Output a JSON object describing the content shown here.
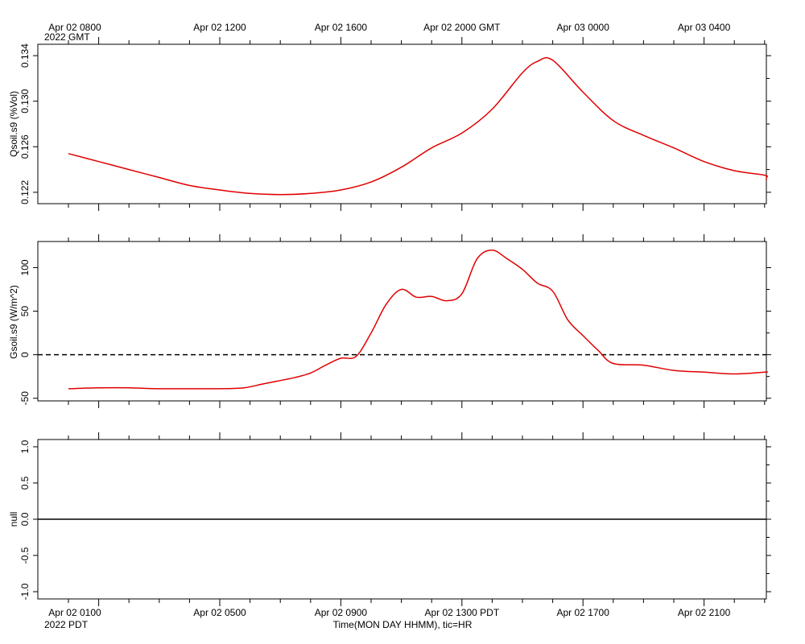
{
  "top_axis": {
    "year_label": "2022 GMT",
    "ticks": [
      "Apr 02 0800",
      "Apr 02 1200",
      "Apr 02 1600",
      "Apr 02 2000 GMT",
      "Apr 03 0000",
      "Apr 03 0400"
    ]
  },
  "bottom_axis": {
    "year_label": "2022 PDT",
    "ticks": [
      "Apr 02 0100",
      "Apr 02 0500",
      "Apr 02 0900",
      "Apr 02 1300 PDT",
      "Apr 02 1700",
      "Apr 02 2100"
    ],
    "title": "Time(MON DAY HHMM), tic=HR"
  },
  "colors": {
    "series": "#e00000",
    "axis": "#000000"
  },
  "chart_data": [
    {
      "type": "line",
      "ylabel": "Qsoil.s9 (%Vol)",
      "ylim": [
        0.121,
        0.135
      ],
      "yticks": [
        0.122,
        0.126,
        0.13,
        0.134
      ],
      "ytick_labels": [
        "0.122",
        "0.126",
        "0.130",
        "0.134"
      ],
      "xlim_hours_pdt": [
        0,
        24
      ],
      "series": [
        {
          "x": [
            0,
            1,
            2,
            3,
            4,
            5,
            6,
            7,
            8,
            9,
            10,
            11,
            12,
            13,
            14,
            15,
            15.5,
            16,
            17,
            18,
            19,
            20,
            21,
            22,
            23,
            23.8,
            24
          ],
          "values": [
            0.1254,
            0.1247,
            0.124,
            0.1233,
            0.1226,
            0.1222,
            0.1219,
            0.1218,
            0.1219,
            0.1222,
            0.1229,
            0.1242,
            0.1259,
            0.1272,
            0.1293,
            0.1325,
            0.1335,
            0.1336,
            0.1308,
            0.1283,
            0.127,
            0.1259,
            0.1247,
            0.1239,
            0.1235,
            0.1233,
            0.1231
          ]
        }
      ]
    },
    {
      "type": "line",
      "ylabel": "Gsoil.s9 (W/m^2)",
      "ylim": [
        -53,
        130
      ],
      "yticks": [
        -50,
        0,
        50,
        100
      ],
      "ytick_labels": [
        "-50",
        "0",
        "50",
        "100"
      ],
      "zero_reference": "dashed",
      "xlim_hours_pdt": [
        0,
        24
      ],
      "series": [
        {
          "x": [
            0,
            1,
            2,
            3,
            4,
            5,
            5.8,
            6.5,
            7.5,
            8,
            8.5,
            9,
            9.5,
            10,
            10.5,
            11,
            11.5,
            12,
            12.5,
            13,
            13.5,
            14,
            14.5,
            15,
            15.5,
            16,
            16.5,
            17,
            17.5,
            18,
            19,
            20,
            21,
            22,
            23,
            24
          ],
          "values": [
            -39,
            -38,
            -38,
            -39,
            -39,
            -39,
            -38,
            -33,
            -26,
            -21,
            -12,
            -4,
            -2,
            25,
            58,
            75,
            66,
            67,
            62,
            70,
            110,
            120,
            110,
            98,
            82,
            73,
            40,
            22,
            5,
            -10,
            -12,
            -18,
            -20,
            -22,
            -20,
            -20
          ]
        }
      ]
    },
    {
      "type": "line",
      "ylabel": "null",
      "ylim": [
        -1.1,
        1.1
      ],
      "yticks": [
        -1.0,
        -0.5,
        0.0,
        0.5,
        1.0
      ],
      "ytick_labels": [
        "-1.0",
        "-0.5",
        "0.0",
        "0.5",
        "1.0"
      ],
      "xlim_hours_pdt": [
        0,
        24
      ],
      "series": [
        {
          "x": [
            0,
            24
          ],
          "values": [
            0,
            0
          ]
        }
      ]
    }
  ]
}
